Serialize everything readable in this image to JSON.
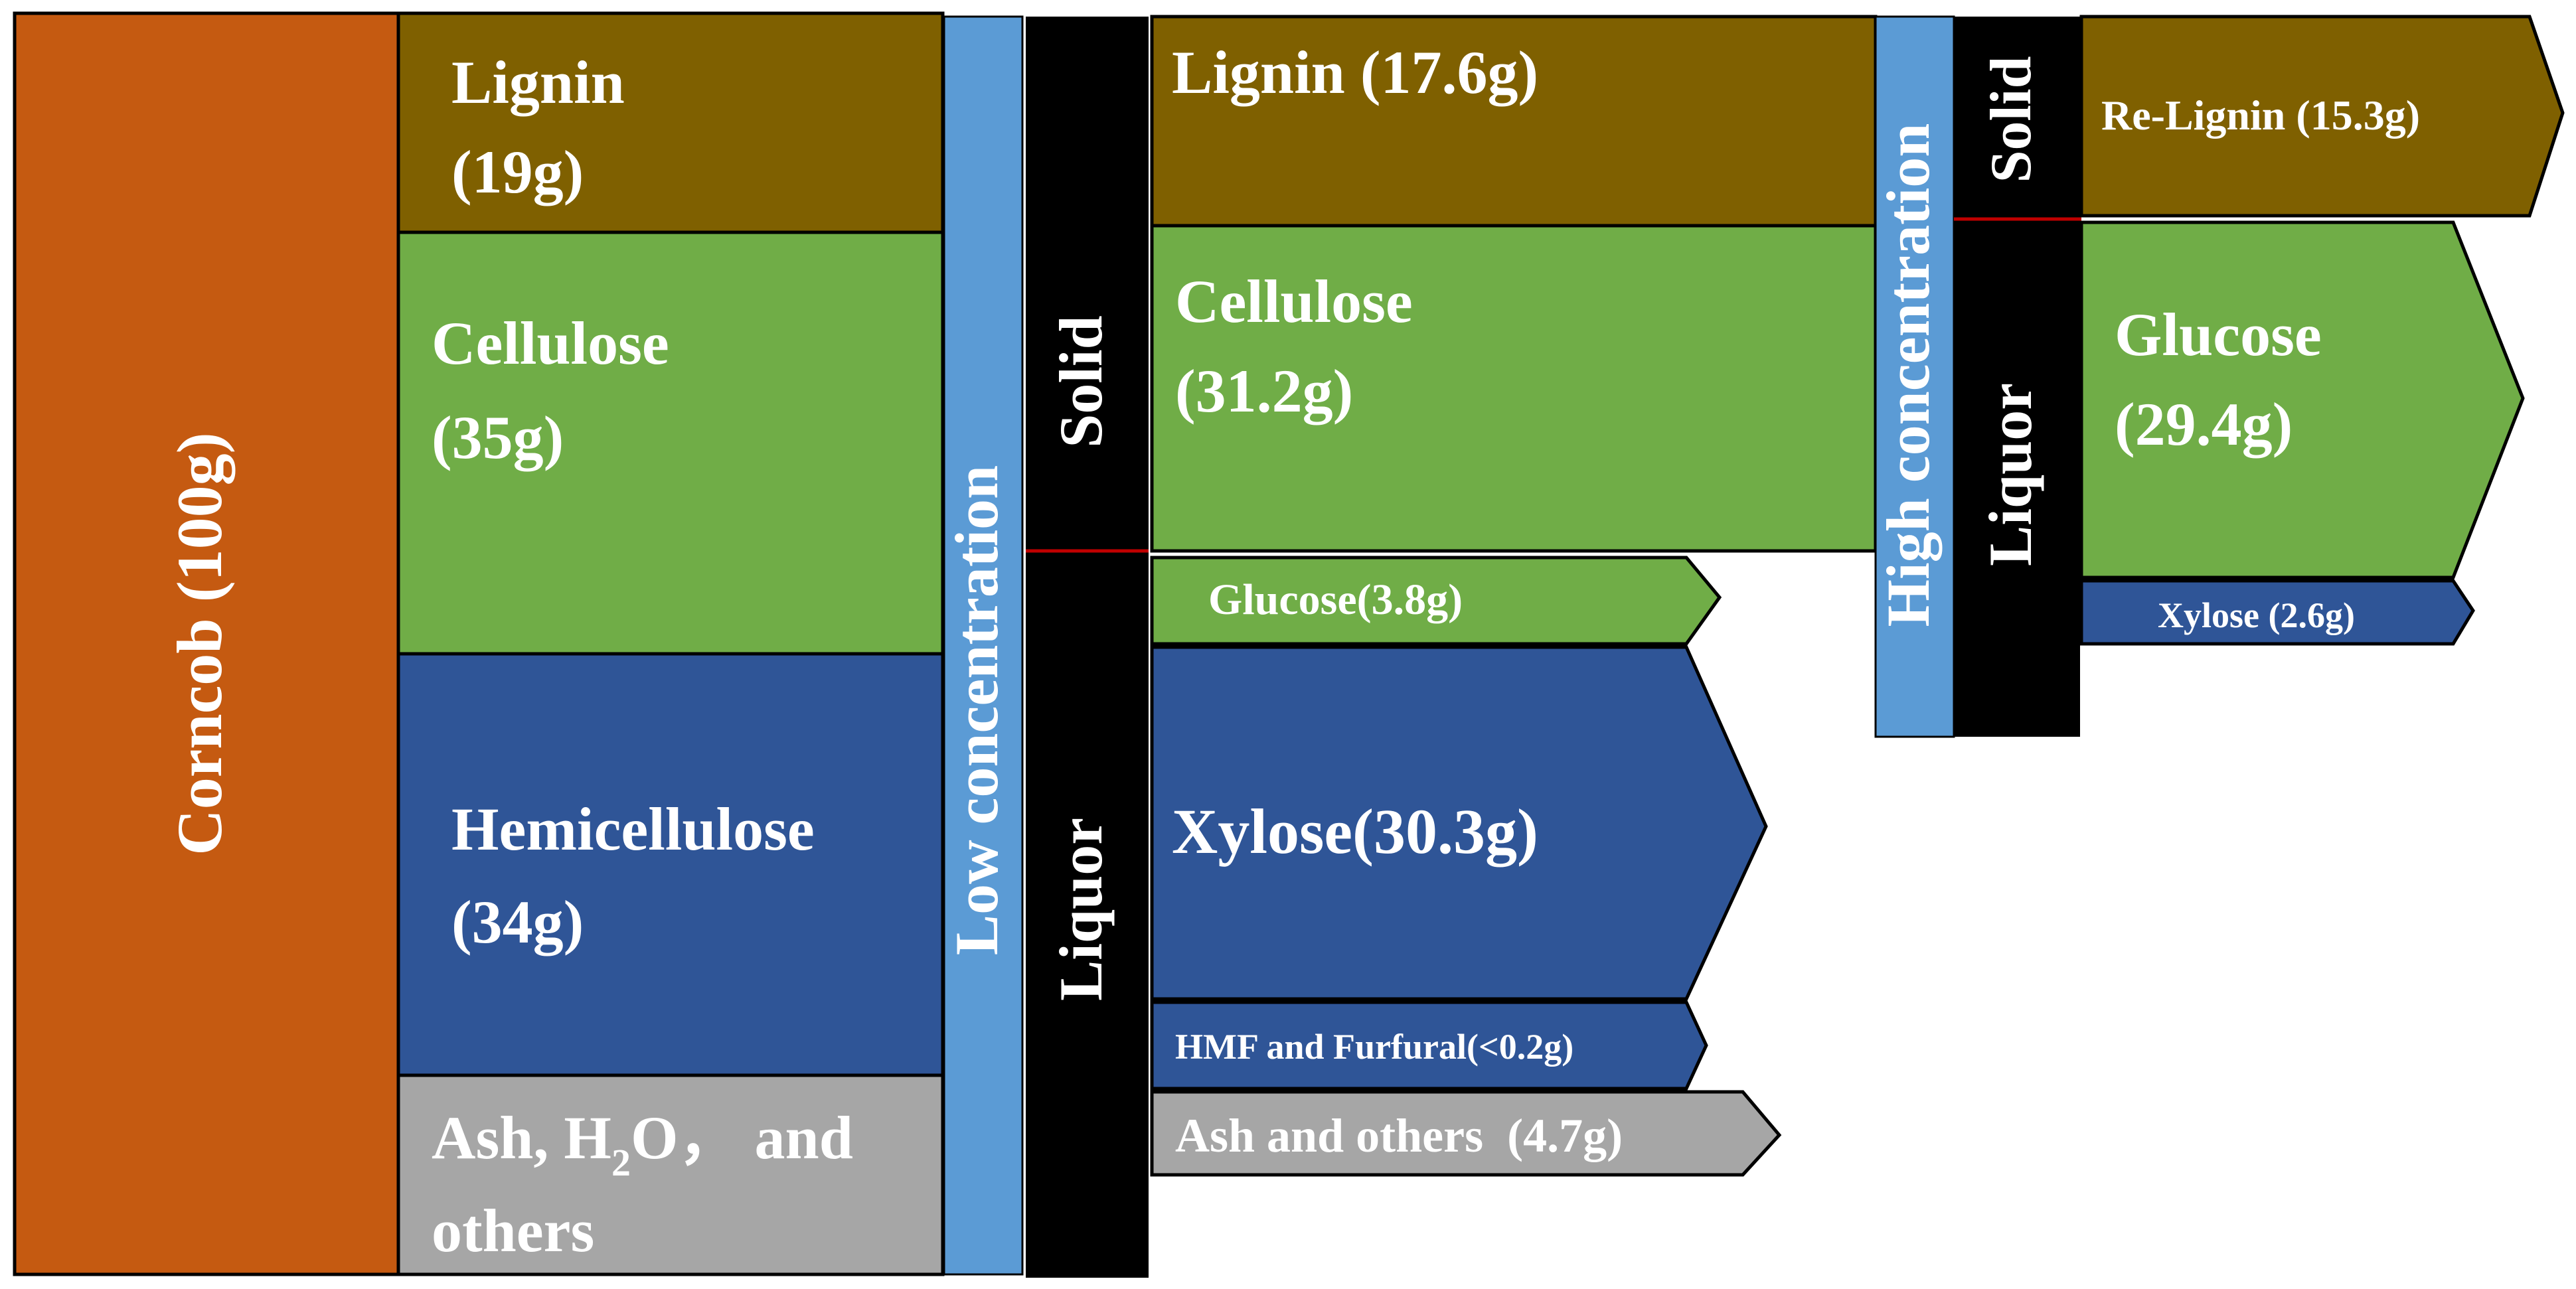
{
  "colors": {
    "corncob": "#C55A11",
    "lignin": "#7F6000",
    "cellulose": "#70AD47",
    "hemicellulose": "#2F5597",
    "ash": "#A6A6A6",
    "stage_bar": "#5B9BD5",
    "phase_bar": "#000000",
    "divider": "#C00000",
    "text": "#FFFFFF"
  },
  "source": {
    "label": "Corncob (100g)"
  },
  "components": {
    "lignin": {
      "line1": "Lignin",
      "line2": "(19g)"
    },
    "cellulose": {
      "line1": "Cellulose",
      "line2": "(35g)"
    },
    "hemicellulose": {
      "line1": "Hemicellulose",
      "line2": "(34g)"
    },
    "ash": {
      "line1_pre": "Ash, H",
      "line1_sub": "2",
      "line1_post": "O， and",
      "line2": "others"
    }
  },
  "stage1": {
    "label": "Low concentration",
    "solid_label": "Solid",
    "liquor_label": "Liquor",
    "solid_outputs": {
      "lignin": {
        "label": "Lignin (17.6g)"
      },
      "cellulose": {
        "line1": "Cellulose",
        "line2": "(31.2g)"
      }
    },
    "liquor_outputs": {
      "glucose": {
        "label": "Glucose(3.8g)"
      },
      "xylose": {
        "label": "Xylose(30.3g)"
      },
      "hmf": {
        "label": "HMF and Furfural(<0.2g)"
      },
      "ash": {
        "label": "Ash and others  (4.7g)"
      }
    }
  },
  "stage2": {
    "label": "High concentration",
    "solid_label": "Solid",
    "liquor_label": "Liquor",
    "outputs": {
      "relignin": {
        "label": "Re-Lignin (15.3g)"
      },
      "glucose": {
        "line1": "Glucose",
        "line2": "(29.4g)"
      },
      "xylose": {
        "label": "Xylose (2.6g)"
      }
    }
  }
}
